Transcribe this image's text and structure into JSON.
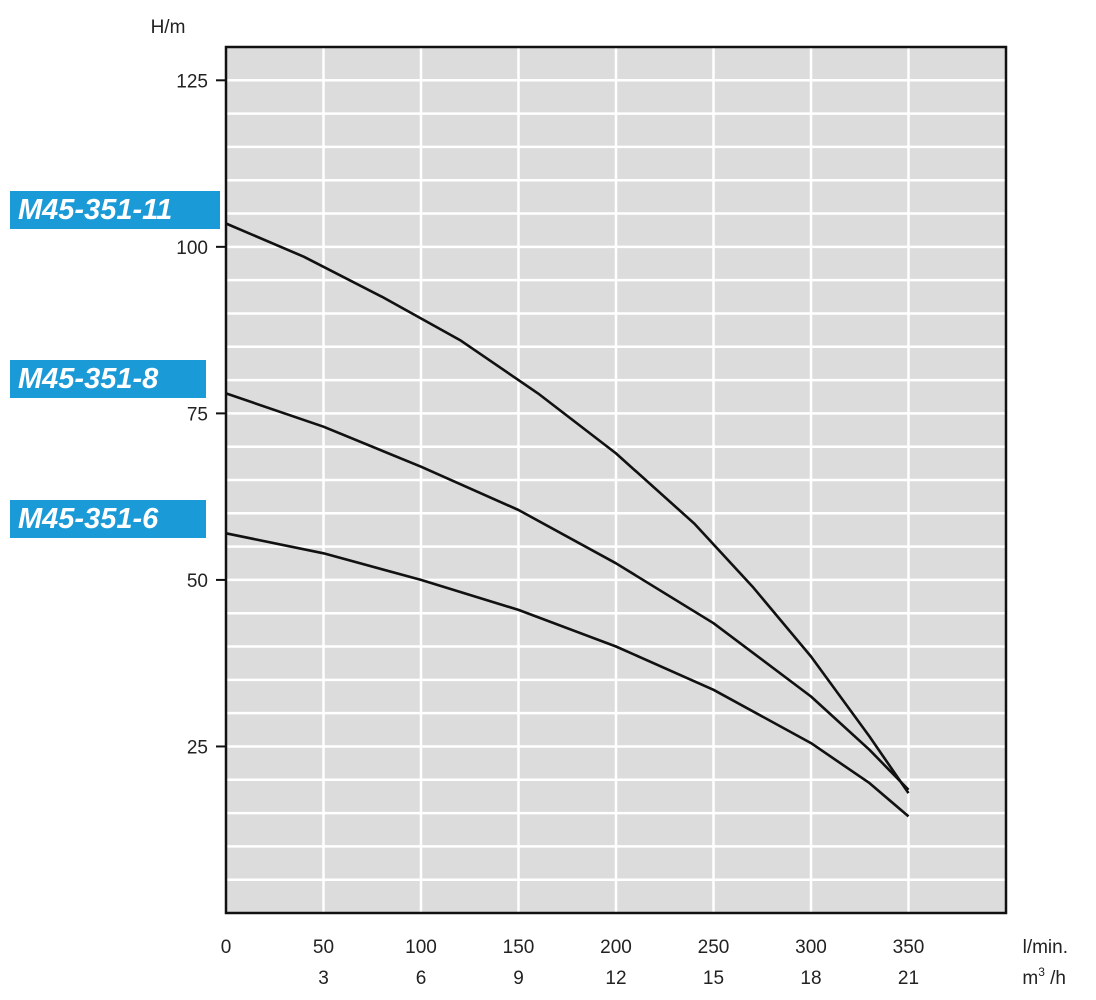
{
  "chart_data": {
    "type": "line",
    "ylabel": "H/m",
    "xlabel_primary": "l/min.",
    "xlabel_secondary_base": "m",
    "xlabel_secondary_sup": "3",
    "xlabel_secondary_tail": " /h",
    "xlim": [
      0,
      400
    ],
    "ylim": [
      0,
      130
    ],
    "x_ticks": [
      0,
      50,
      100,
      150,
      200,
      250,
      300,
      350
    ],
    "x_ticks_secondary": [
      "",
      "3",
      "6",
      "9",
      "12",
      "15",
      "18",
      "21"
    ],
    "y_ticks": [
      25,
      50,
      75,
      100,
      125
    ],
    "grid": true,
    "series": [
      {
        "name": "M45-351-11",
        "x": [
          0,
          40,
          80,
          120,
          160,
          200,
          240,
          270,
          300,
          330,
          350
        ],
        "y": [
          103.5,
          98.5,
          92.5,
          86,
          78,
          69,
          58.5,
          49,
          38.5,
          26.5,
          18
        ]
      },
      {
        "name": "M45-351-8",
        "x": [
          0,
          50,
          100,
          150,
          200,
          250,
          300,
          330,
          350
        ],
        "y": [
          78,
          73,
          67,
          60.5,
          52.5,
          43.5,
          32.5,
          24.5,
          18.5
        ]
      },
      {
        "name": "M45-351-6",
        "x": [
          0,
          50,
          100,
          150,
          200,
          250,
          300,
          330,
          350
        ],
        "y": [
          57,
          54,
          50,
          45.5,
          40,
          33.5,
          25.5,
          19.5,
          14.5
        ]
      }
    ]
  }
}
